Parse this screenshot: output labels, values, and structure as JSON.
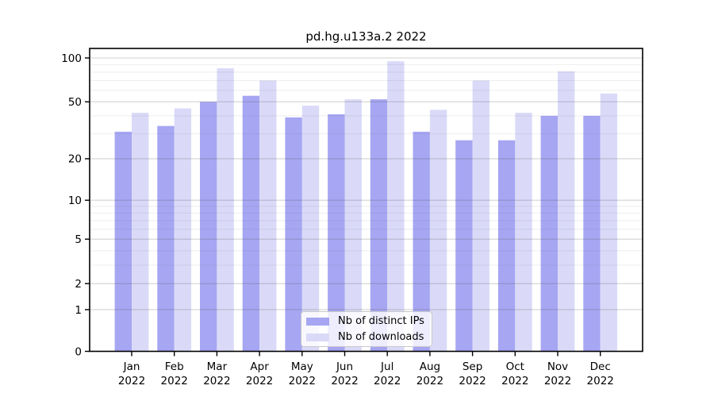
{
  "title": "pd.hg.u133a.2 2022",
  "chart_data": {
    "type": "bar",
    "title": "pd.hg.u133a.2 2022",
    "categories": [
      "Jan 2022",
      "Feb 2022",
      "Mar 2022",
      "Apr 2022",
      "May 2022",
      "Jun 2022",
      "Jul 2022",
      "Aug 2022",
      "Sep 2022",
      "Oct 2022",
      "Nov 2022",
      "Dec 2022"
    ],
    "months": [
      "Jan",
      "Feb",
      "Mar",
      "Apr",
      "May",
      "Jun",
      "Jul",
      "Aug",
      "Sep",
      "Oct",
      "Nov",
      "Dec"
    ],
    "year": "2022",
    "series": [
      {
        "name": "Nb of distinct IPs",
        "color": "#a6a6f3",
        "values": [
          31,
          34,
          50,
          55,
          39,
          41,
          52,
          31,
          27,
          27,
          40,
          40
        ]
      },
      {
        "name": "Nb of downloads",
        "color": "#dadaf8",
        "values": [
          42,
          45,
          85,
          70,
          47,
          52,
          95,
          44,
          70,
          42,
          81,
          57
        ]
      }
    ],
    "xlabel": "",
    "ylabel": "",
    "yscale": "log1p",
    "ylim": [
      0,
      117
    ],
    "yticks": [
      0,
      1,
      2,
      5,
      10,
      20,
      50,
      100
    ],
    "yticks_minor": [
      3,
      4,
      6,
      7,
      8,
      9,
      30,
      40,
      60,
      70,
      80,
      90
    ],
    "grid": "horizontal",
    "legend_position": "bottom-center",
    "colors": {
      "background": "#ffffff",
      "axis": "#000000",
      "grid_major": "#c8c8c8",
      "grid_minor": "#ececec",
      "legend_border": "#c8c8c8"
    }
  }
}
